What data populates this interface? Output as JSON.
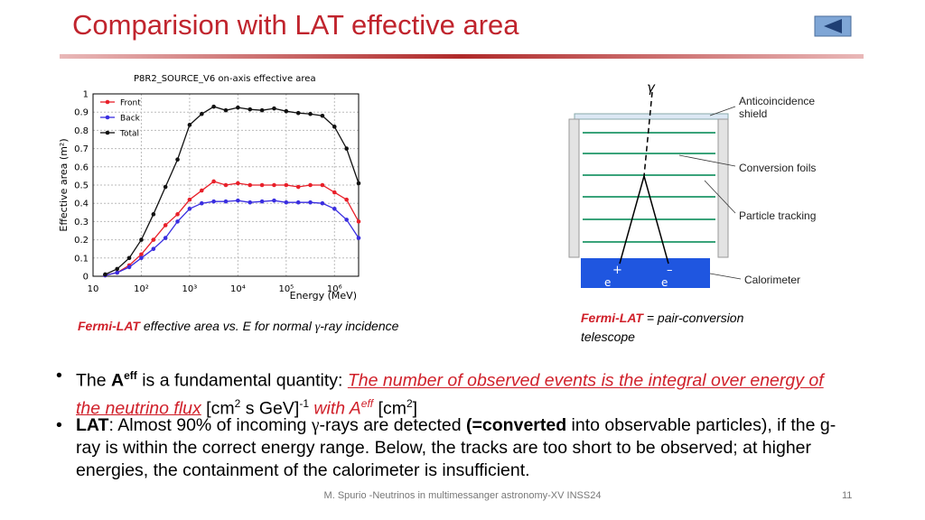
{
  "header": {
    "title": "Comparision with LAT effective area"
  },
  "figure_left": {
    "chart_data": {
      "type": "line",
      "title": "P8R2_SOURCE_V6 on-axis effective area",
      "x_label": "Energy (MeV)",
      "y_label": "Effective area (m²)",
      "x": [
        17.8,
        31.6,
        56.2,
        100,
        178,
        316,
        562,
        1000,
        1780,
        3160,
        5620,
        10000,
        17800,
        31600,
        56200,
        100000,
        178000,
        316000,
        562000,
        1000000,
        1780000,
        3160000
      ],
      "series": [
        {
          "name": "Front",
          "color": "#e8202a",
          "values": [
            0.005,
            0.02,
            0.06,
            0.12,
            0.2,
            0.28,
            0.34,
            0.42,
            0.47,
            0.52,
            0.5,
            0.51,
            0.5,
            0.5,
            0.5,
            0.5,
            0.49,
            0.5,
            0.5,
            0.46,
            0.42,
            0.3
          ]
        },
        {
          "name": "Back",
          "color": "#3a2ee0",
          "values": [
            0.005,
            0.02,
            0.05,
            0.1,
            0.15,
            0.21,
            0.3,
            0.37,
            0.4,
            0.41,
            0.41,
            0.415,
            0.405,
            0.41,
            0.415,
            0.405,
            0.405,
            0.405,
            0.4,
            0.37,
            0.31,
            0.21
          ]
        },
        {
          "name": "Total",
          "color": "#111111",
          "values": [
            0.01,
            0.04,
            0.1,
            0.2,
            0.34,
            0.49,
            0.64,
            0.83,
            0.89,
            0.93,
            0.91,
            0.925,
            0.915,
            0.91,
            0.92,
            0.905,
            0.895,
            0.89,
            0.88,
            0.82,
            0.7,
            0.51
          ]
        }
      ],
      "xlim": [
        10,
        3160000
      ],
      "log_x": true,
      "xticks": [
        10,
        {
          "value": 100,
          "label": "10²"
        },
        {
          "value": 1000,
          "label": "10³"
        },
        {
          "value": 10000,
          "label": "10⁴"
        },
        {
          "value": 100000,
          "label": "10⁵"
        },
        {
          "value": 1000000,
          "label": "10⁶"
        }
      ],
      "ylim": [
        0,
        1
      ],
      "yticks": [
        0,
        0.1,
        0.2,
        0.3,
        0.4,
        0.5,
        0.6,
        0.7,
        0.8,
        0.9,
        1
      ],
      "grid": true,
      "legend": "top-left"
    },
    "caption": [
      "Fermi-LAT",
      " effective area vs. E for normal ",
      "γ",
      "-ray incidence"
    ]
  },
  "figure_right": {
    "labels": [
      "Anticoincidence shield",
      "Conversion foils",
      "Particle tracking",
      "Calorimeter"
    ],
    "gamma": "γ",
    "e_plus": "+",
    "e_minus": "–",
    "e1": "e",
    "e2": "e",
    "caption": [
      "Fermi-LAT",
      " = pair-conversion telescope"
    ]
  },
  "bullets": [
    [
      "The ",
      "A",
      "eff",
      " is a fundamental quantity: ",
      "The number of observed events is the integral over energy of the neutrino flux",
      " [cm",
      "2",
      " s GeV]",
      "-1",
      " with A",
      "eff",
      " [cm",
      "2",
      "]"
    ],
    [
      "LAT",
      ": Almost 90% of incoming  ",
      "γ",
      "-rays are detected ",
      "(=converted",
      " into observable particles), if the g-ray is within the correct energy range. Below, the tracks are too short to be observed; at higher energies, the containment of the calorimeter is insufficient."
    ]
  ],
  "footer": {
    "text": "M. Spurio -Neutrinos in multimessanger astronomy-XV INSS24",
    "page": "11"
  }
}
